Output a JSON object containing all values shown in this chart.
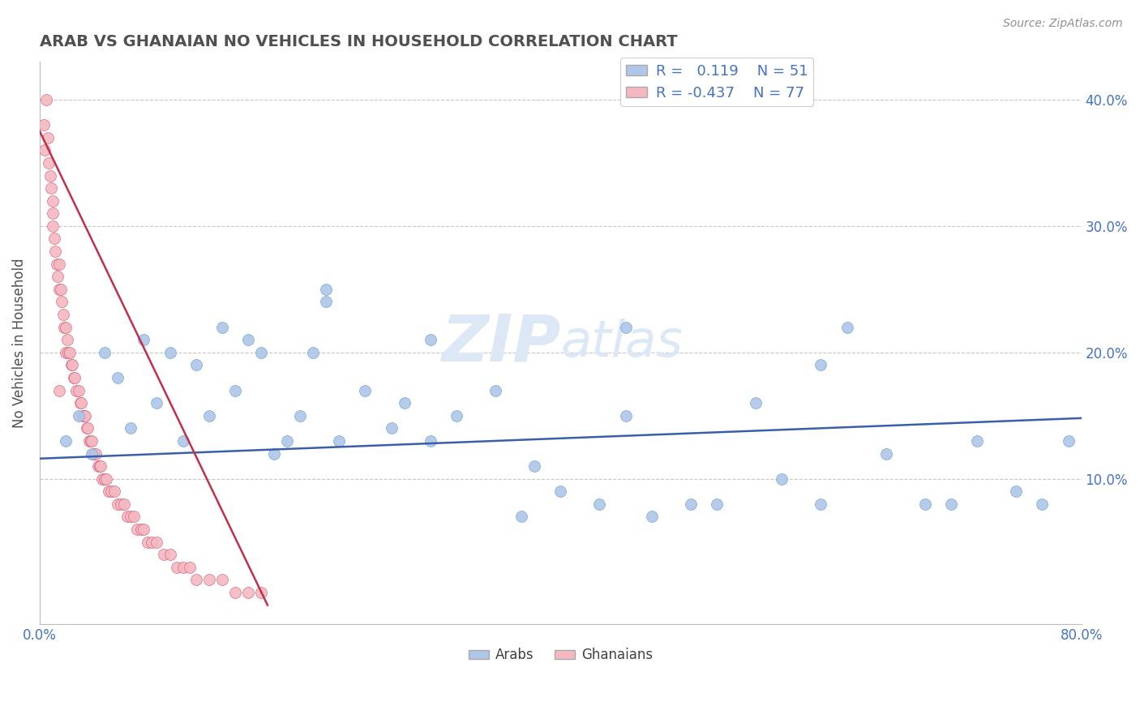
{
  "title": "ARAB VS GHANAIAN NO VEHICLES IN HOUSEHOLD CORRELATION CHART",
  "source": "Source: ZipAtlas.com",
  "ylabel": "No Vehicles in Household",
  "xlim": [
    0.0,
    0.8
  ],
  "ylim": [
    -0.015,
    0.43
  ],
  "watermark_zip": "ZIP",
  "watermark_atlas": "atlas",
  "legend_entry_arab": "R =   0.119    N = 51",
  "legend_entry_ghanaian": "R = -0.437    N = 77",
  "legend_title_arab": "Arabs",
  "legend_title_ghanaian": "Ghanaians",
  "arab_color": "#aec6e8",
  "arab_edge_color": "#6a9fd8",
  "ghanaian_color": "#f4b8c1",
  "ghanaian_edge_color": "#d9607a",
  "trend_arab_color": "#3a5fa8",
  "trend_ghanaian_color": "#c0304a",
  "grid_color": "#c8c8c8",
  "background_color": "#ffffff",
  "title_color": "#505050",
  "axis_label_color": "#4472c4",
  "source_color": "#909090",
  "arab_trend_x": [
    0.0,
    0.8
  ],
  "arab_trend_y": [
    0.116,
    0.148
  ],
  "ghanaian_trend_x": [
    0.0,
    0.175
  ],
  "ghanaian_trend_y": [
    0.375,
    0.0
  ],
  "dashed_hlines": [
    0.1,
    0.2,
    0.3,
    0.4
  ],
  "dot_size": 100,
  "arab_x": [
    0.02,
    0.03,
    0.04,
    0.05,
    0.06,
    0.07,
    0.08,
    0.09,
    0.1,
    0.11,
    0.12,
    0.13,
    0.14,
    0.15,
    0.16,
    0.17,
    0.18,
    0.19,
    0.2,
    0.21,
    0.22,
    0.23,
    0.25,
    0.27,
    0.28,
    0.3,
    0.32,
    0.35,
    0.37,
    0.38,
    0.4,
    0.43,
    0.45,
    0.47,
    0.5,
    0.52,
    0.55,
    0.57,
    0.6,
    0.62,
    0.65,
    0.68,
    0.7,
    0.72,
    0.75,
    0.77,
    0.79,
    0.22,
    0.3,
    0.45,
    0.6
  ],
  "arab_y": [
    0.13,
    0.15,
    0.12,
    0.2,
    0.18,
    0.14,
    0.21,
    0.16,
    0.2,
    0.13,
    0.19,
    0.15,
    0.22,
    0.17,
    0.21,
    0.2,
    0.12,
    0.13,
    0.15,
    0.2,
    0.25,
    0.13,
    0.17,
    0.14,
    0.16,
    0.21,
    0.15,
    0.17,
    0.07,
    0.11,
    0.09,
    0.08,
    0.15,
    0.07,
    0.08,
    0.08,
    0.16,
    0.1,
    0.08,
    0.22,
    0.12,
    0.08,
    0.08,
    0.13,
    0.09,
    0.08,
    0.13,
    0.24,
    0.13,
    0.22,
    0.19
  ],
  "ghanaian_x": [
    0.003,
    0.004,
    0.005,
    0.006,
    0.007,
    0.008,
    0.009,
    0.01,
    0.01,
    0.011,
    0.012,
    0.013,
    0.014,
    0.015,
    0.015,
    0.016,
    0.017,
    0.018,
    0.019,
    0.02,
    0.02,
    0.021,
    0.022,
    0.023,
    0.024,
    0.025,
    0.026,
    0.027,
    0.028,
    0.03,
    0.031,
    0.032,
    0.033,
    0.034,
    0.035,
    0.036,
    0.037,
    0.038,
    0.039,
    0.04,
    0.041,
    0.042,
    0.043,
    0.045,
    0.046,
    0.047,
    0.048,
    0.05,
    0.051,
    0.053,
    0.055,
    0.057,
    0.06,
    0.062,
    0.065,
    0.067,
    0.07,
    0.072,
    0.075,
    0.078,
    0.08,
    0.083,
    0.086,
    0.09,
    0.095,
    0.1,
    0.105,
    0.11,
    0.115,
    0.12,
    0.13,
    0.14,
    0.15,
    0.16,
    0.17,
    0.01,
    0.015
  ],
  "ghanaian_y": [
    0.38,
    0.36,
    0.4,
    0.37,
    0.35,
    0.34,
    0.33,
    0.32,
    0.3,
    0.29,
    0.28,
    0.27,
    0.26,
    0.27,
    0.25,
    0.25,
    0.24,
    0.23,
    0.22,
    0.22,
    0.2,
    0.21,
    0.2,
    0.2,
    0.19,
    0.19,
    0.18,
    0.18,
    0.17,
    0.17,
    0.16,
    0.16,
    0.15,
    0.15,
    0.15,
    0.14,
    0.14,
    0.13,
    0.13,
    0.13,
    0.12,
    0.12,
    0.12,
    0.11,
    0.11,
    0.11,
    0.1,
    0.1,
    0.1,
    0.09,
    0.09,
    0.09,
    0.08,
    0.08,
    0.08,
    0.07,
    0.07,
    0.07,
    0.06,
    0.06,
    0.06,
    0.05,
    0.05,
    0.05,
    0.04,
    0.04,
    0.03,
    0.03,
    0.03,
    0.02,
    0.02,
    0.02,
    0.01,
    0.01,
    0.01,
    0.31,
    0.17
  ]
}
